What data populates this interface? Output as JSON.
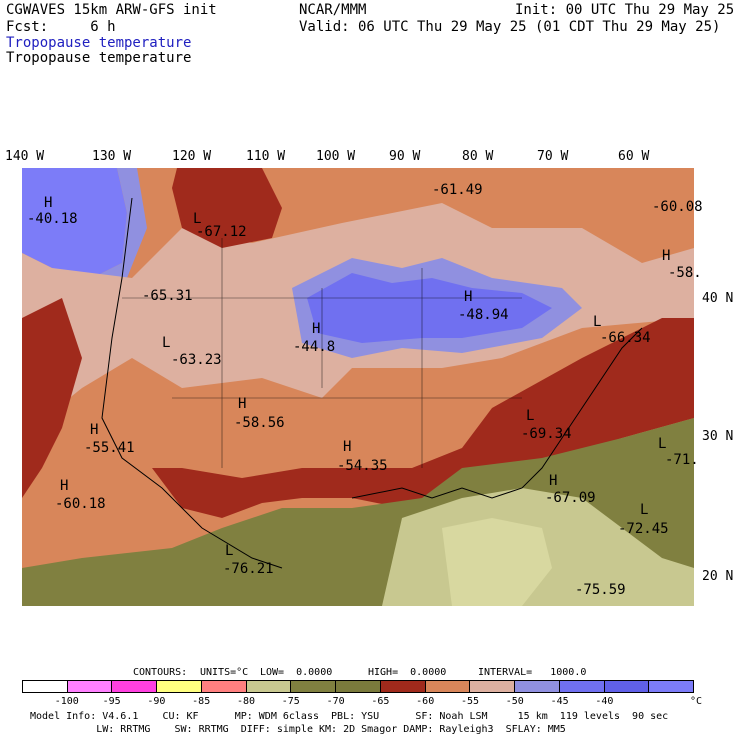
{
  "header": {
    "title_left": "CGWAVES 15km ARW-GFS init",
    "fcst": "Fcst:     6 h",
    "center": "NCAR/MMM",
    "init": "Init: 00 UTC Thu 29 May 25",
    "valid": "Valid: 06 UTC Thu 29 May 25 (01 CDT Thu 29 May 25)",
    "field_blue": "Tropopause temperature",
    "field_black": "Tropopause temperature"
  },
  "longitudes": [
    "140 W",
    "130 W",
    "120 W",
    "110 W",
    "100 W",
    "90 W",
    "80 W",
    "70 W",
    "60 W"
  ],
  "latitudes": [
    "40 N",
    "30 N",
    "20 N"
  ],
  "map_labels": [
    {
      "hl": "H",
      "val": "-40.18"
    },
    {
      "hl": "L",
      "val": "-67.12"
    },
    {
      "hl": "",
      "val": "-61.49"
    },
    {
      "hl": "",
      "val": "-60.08"
    },
    {
      "hl": "H",
      "val": "-58."
    },
    {
      "hl": "",
      "val": "-65.31"
    },
    {
      "hl": "L",
      "val": "-63.23"
    },
    {
      "hl": "H",
      "val": "-44.8"
    },
    {
      "hl": "H",
      "val": "-48.94"
    },
    {
      "hl": "L",
      "val": "-66.34"
    },
    {
      "hl": "H",
      "val": "-58.56"
    },
    {
      "hl": "H",
      "val": "-55.41"
    },
    {
      "hl": "H",
      "val": "-54.35"
    },
    {
      "hl": "L",
      "val": "-69.34"
    },
    {
      "hl": "L",
      "val": "-71."
    },
    {
      "hl": "H",
      "val": "-60.18"
    },
    {
      "hl": "H",
      "val": "-67.09"
    },
    {
      "hl": "L",
      "val": "-72.45"
    },
    {
      "hl": "L",
      "val": "-76.21"
    },
    {
      "hl": "",
      "val": "-75.59"
    }
  ],
  "contours_line": {
    "label": "CONTOURS:",
    "units": "UNITS=°C",
    "low": "LOW=  0.0000",
    "high": "HIGH=  0.0000",
    "interval": "INTERVAL=   1000.0"
  },
  "colorbar": {
    "colors": [
      "#ffffff",
      "#ff80ff",
      "#ff40e0",
      "#ffff80",
      "#ff8080",
      "#c8c890",
      "#808040",
      "#7a7a3c",
      "#a02a1c",
      "#d8865a",
      "#ddb0a0",
      "#9090e0",
      "#7070f0",
      "#6060e8",
      "#7c7cf8"
    ],
    "ticks": [
      "-100",
      "-95",
      "-90",
      "-85",
      "-80",
      "-75",
      "-70",
      "-65",
      "-60",
      "-55",
      "-50",
      "-45",
      "-40"
    ],
    "unit": "°C"
  },
  "footer": {
    "line1": "Model Info: V4.6.1    CU: KF      MP: WDM 6class  PBL: YSU      SF: Noah LSM     15 km  119 levels  90 sec",
    "line2": "           LW: RRTMG    SW: RRTMG  DIFF: simple KM: 2D Smagor DAMP: Rayleigh3  SFLAY: MM5"
  }
}
